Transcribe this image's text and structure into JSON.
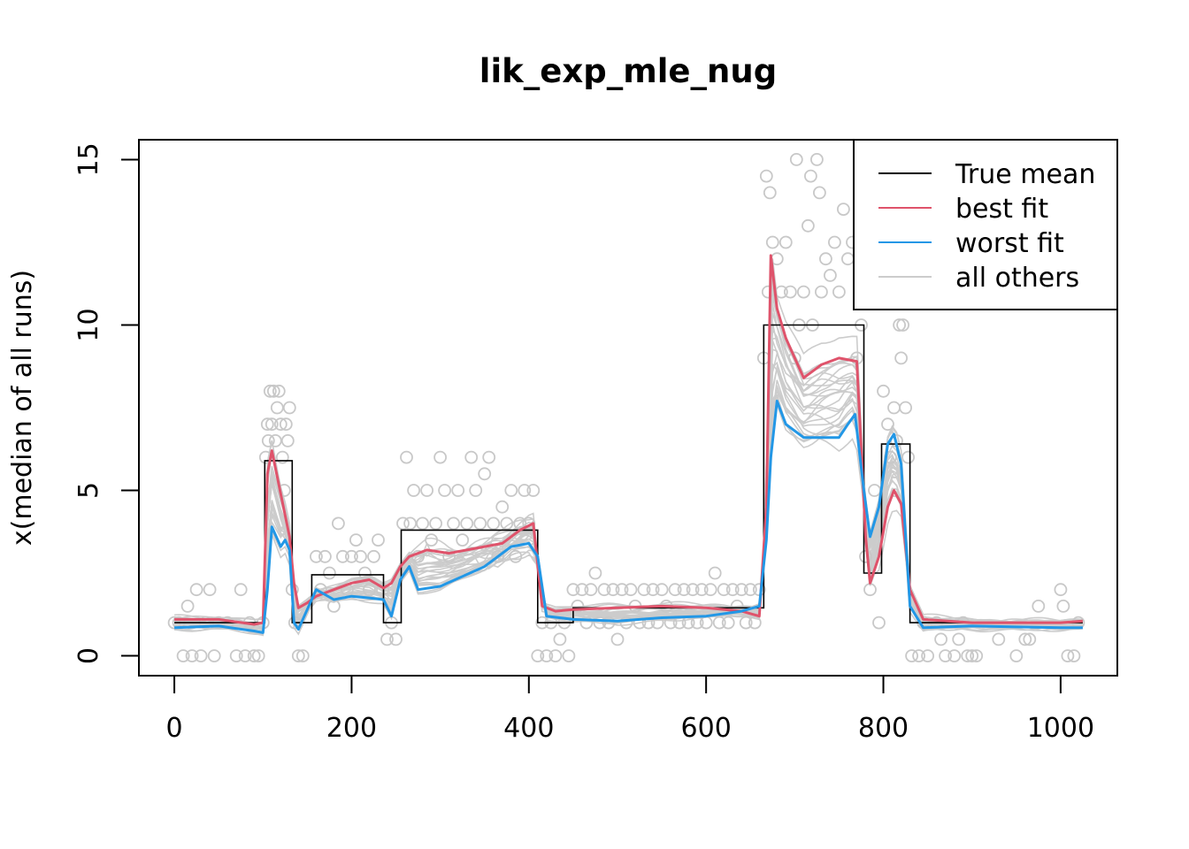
{
  "chart_data": {
    "type": "line",
    "title": "lik_exp_mle_nug",
    "xlabel": "",
    "ylabel": "x(median of all runs)",
    "xlim": [
      -40,
      1064
    ],
    "ylim": [
      -0.6,
      15.6
    ],
    "x_ticks": [
      0,
      200,
      400,
      600,
      800,
      1000
    ],
    "y_ticks": [
      0,
      5,
      10,
      15
    ],
    "x_tick_labels": [
      "0",
      "200",
      "400",
      "600",
      "800",
      "1000"
    ],
    "y_tick_labels": [
      "0",
      "5",
      "10",
      "15"
    ],
    "grid": false,
    "legend_position": "top-right",
    "colors": {
      "true_mean": "#000000",
      "best_fit": "#DF536B",
      "worst_fit": "#2297E6",
      "all_others": "#CCCCCC",
      "points": "#C8C8C8"
    },
    "legend": [
      {
        "key": "true_mean",
        "label": "True mean"
      },
      {
        "key": "best_fit",
        "label": "best fit"
      },
      {
        "key": "worst_fit",
        "label": "worst fit"
      },
      {
        "key": "all_others",
        "label": "all others"
      }
    ],
    "true_mean": {
      "name": "True mean",
      "x": [
        0,
        102,
        102,
        133,
        133,
        155,
        155,
        236,
        236,
        256,
        256,
        410,
        410,
        450,
        450,
        665,
        665,
        778,
        778,
        798,
        798,
        830,
        830,
        1025
      ],
      "y": [
        1,
        1,
        5.9,
        5.9,
        1,
        1,
        2.45,
        2.45,
        1,
        1,
        3.8,
        3.8,
        1,
        1,
        1.45,
        1.45,
        10,
        10,
        2.5,
        2.5,
        6.4,
        6.4,
        1,
        1
      ]
    },
    "best_fit": {
      "name": "best fit",
      "x": [
        0,
        50,
        90,
        100,
        105,
        110,
        120,
        130,
        135,
        140,
        150,
        160,
        180,
        200,
        220,
        236,
        245,
        255,
        265,
        285,
        310,
        340,
        370,
        390,
        405,
        415,
        430,
        450,
        500,
        550,
        600,
        640,
        660,
        668,
        673,
        680,
        690,
        710,
        730,
        750,
        770,
        780,
        785,
        795,
        805,
        812,
        820,
        830,
        845,
        900,
        1000,
        1025
      ],
      "y": [
        1.1,
        1.1,
        0.95,
        1.0,
        5.5,
        6.2,
        4.9,
        3.6,
        2.2,
        1.45,
        1.6,
        1.8,
        2.0,
        2.2,
        2.3,
        2.05,
        2.2,
        2.7,
        3.0,
        3.2,
        3.1,
        3.25,
        3.4,
        3.8,
        4.0,
        1.5,
        1.35,
        1.4,
        1.45,
        1.5,
        1.45,
        1.35,
        1.2,
        4.5,
        12.1,
        10.5,
        9.6,
        8.4,
        8.8,
        9.0,
        8.9,
        3.6,
        2.2,
        3.0,
        4.5,
        5.0,
        4.6,
        2.0,
        1.1,
        1.0,
        1.0,
        1.05
      ]
    },
    "worst_fit": {
      "name": "worst fit",
      "x": [
        0,
        50,
        90,
        100,
        105,
        110,
        120,
        125,
        130,
        135,
        140,
        150,
        160,
        180,
        200,
        220,
        236,
        245,
        255,
        265,
        275,
        300,
        350,
        380,
        400,
        410,
        420,
        450,
        500,
        550,
        600,
        640,
        660,
        668,
        673,
        680,
        690,
        710,
        730,
        750,
        760,
        768,
        778,
        785,
        795,
        805,
        812,
        820,
        830,
        845,
        900,
        1000,
        1025
      ],
      "y": [
        0.85,
        0.9,
        0.75,
        0.7,
        2.0,
        3.9,
        3.3,
        3.5,
        3.2,
        1.0,
        0.8,
        1.4,
        2.0,
        1.7,
        1.8,
        1.75,
        1.7,
        1.2,
        2.3,
        2.7,
        2.0,
        2.1,
        2.7,
        3.3,
        3.4,
        3.0,
        1.2,
        1.1,
        1.05,
        1.15,
        1.2,
        1.35,
        1.5,
        3.5,
        6.0,
        7.7,
        7.0,
        6.6,
        6.6,
        6.6,
        7.0,
        7.3,
        5.0,
        3.6,
        4.5,
        6.4,
        6.7,
        5.8,
        1.5,
        0.85,
        0.9,
        0.85,
        0.85
      ]
    },
    "points_note": "",
    "points": [
      [
        0,
        1
      ],
      [
        5,
        1
      ],
      [
        10,
        0
      ],
      [
        15,
        1.5
      ],
      [
        20,
        0
      ],
      [
        25,
        2
      ],
      [
        30,
        0
      ],
      [
        35,
        1
      ],
      [
        40,
        2
      ],
      [
        45,
        0
      ],
      [
        50,
        1
      ],
      [
        60,
        1
      ],
      [
        70,
        0
      ],
      [
        75,
        2
      ],
      [
        80,
        0
      ],
      [
        85,
        1
      ],
      [
        90,
        0
      ],
      [
        95,
        0
      ],
      [
        100,
        1
      ],
      [
        103,
        6
      ],
      [
        105,
        7
      ],
      [
        106,
        6.5
      ],
      [
        108,
        8
      ],
      [
        110,
        7
      ],
      [
        112,
        8
      ],
      [
        114,
        6.5
      ],
      [
        116,
        7.5
      ],
      [
        118,
        8
      ],
      [
        120,
        7
      ],
      [
        122,
        6
      ],
      [
        124,
        5
      ],
      [
        126,
        7
      ],
      [
        128,
        6.5
      ],
      [
        130,
        7.5
      ],
      [
        133,
        2
      ],
      [
        136,
        1
      ],
      [
        140,
        0
      ],
      [
        145,
        0
      ],
      [
        160,
        3
      ],
      [
        165,
        2
      ],
      [
        170,
        3
      ],
      [
        175,
        2.5
      ],
      [
        180,
        1.5
      ],
      [
        185,
        4
      ],
      [
        190,
        3
      ],
      [
        195,
        2
      ],
      [
        200,
        3
      ],
      [
        205,
        3.5
      ],
      [
        210,
        3
      ],
      [
        215,
        2.5
      ],
      [
        220,
        2
      ],
      [
        225,
        3
      ],
      [
        230,
        3.5
      ],
      [
        235,
        2
      ],
      [
        240,
        0.5
      ],
      [
        245,
        1
      ],
      [
        250,
        0.5
      ],
      [
        258,
        4
      ],
      [
        262,
        6
      ],
      [
        266,
        4
      ],
      [
        270,
        5
      ],
      [
        275,
        3
      ],
      [
        280,
        4
      ],
      [
        285,
        5
      ],
      [
        290,
        3.5
      ],
      [
        295,
        4
      ],
      [
        300,
        6
      ],
      [
        305,
        5
      ],
      [
        310,
        3
      ],
      [
        315,
        4
      ],
      [
        320,
        5
      ],
      [
        325,
        3.5
      ],
      [
        330,
        4
      ],
      [
        335,
        6
      ],
      [
        340,
        5
      ],
      [
        345,
        4
      ],
      [
        350,
        5.5
      ],
      [
        355,
        6
      ],
      [
        360,
        4
      ],
      [
        365,
        3
      ],
      [
        370,
        4.5
      ],
      [
        375,
        4
      ],
      [
        380,
        5
      ],
      [
        385,
        3
      ],
      [
        390,
        4
      ],
      [
        395,
        5
      ],
      [
        400,
        4
      ],
      [
        405,
        5
      ],
      [
        410,
        0
      ],
      [
        415,
        1
      ],
      [
        420,
        0
      ],
      [
        425,
        1
      ],
      [
        430,
        0
      ],
      [
        435,
        0.5
      ],
      [
        440,
        1
      ],
      [
        445,
        0
      ],
      [
        450,
        2
      ],
      [
        455,
        1.5
      ],
      [
        460,
        2
      ],
      [
        465,
        1
      ],
      [
        470,
        2
      ],
      [
        475,
        2.5
      ],
      [
        480,
        1
      ],
      [
        485,
        2
      ],
      [
        490,
        1
      ],
      [
        495,
        2
      ],
      [
        500,
        0.5
      ],
      [
        505,
        2
      ],
      [
        510,
        1
      ],
      [
        515,
        2
      ],
      [
        520,
        1.5
      ],
      [
        525,
        1
      ],
      [
        530,
        2
      ],
      [
        535,
        1
      ],
      [
        540,
        2
      ],
      [
        545,
        1
      ],
      [
        550,
        2
      ],
      [
        555,
        1.5
      ],
      [
        560,
        1
      ],
      [
        565,
        2
      ],
      [
        570,
        1
      ],
      [
        575,
        2
      ],
      [
        580,
        1
      ],
      [
        585,
        2
      ],
      [
        590,
        1
      ],
      [
        595,
        2
      ],
      [
        600,
        1
      ],
      [
        605,
        2
      ],
      [
        610,
        2.5
      ],
      [
        615,
        1
      ],
      [
        620,
        2
      ],
      [
        625,
        1
      ],
      [
        630,
        2
      ],
      [
        635,
        1.5
      ],
      [
        640,
        2
      ],
      [
        645,
        1
      ],
      [
        650,
        2
      ],
      [
        655,
        1
      ],
      [
        660,
        2
      ],
      [
        665,
        9
      ],
      [
        668,
        14.5
      ],
      [
        670,
        11
      ],
      [
        672,
        14
      ],
      [
        675,
        12.5
      ],
      [
        680,
        12
      ],
      [
        685,
        11
      ],
      [
        690,
        12.5
      ],
      [
        695,
        11
      ],
      [
        700,
        9
      ],
      [
        702,
        15
      ],
      [
        705,
        10
      ],
      [
        710,
        11
      ],
      [
        715,
        13
      ],
      [
        718,
        14.5
      ],
      [
        720,
        10
      ],
      [
        725,
        15
      ],
      [
        728,
        14
      ],
      [
        730,
        11
      ],
      [
        735,
        12
      ],
      [
        740,
        11.5
      ],
      [
        745,
        12.5
      ],
      [
        750,
        11
      ],
      [
        755,
        13.5
      ],
      [
        760,
        12
      ],
      [
        765,
        12.5
      ],
      [
        770,
        9
      ],
      [
        775,
        10
      ],
      [
        780,
        3
      ],
      [
        785,
        2
      ],
      [
        790,
        5
      ],
      [
        795,
        1
      ],
      [
        800,
        8
      ],
      [
        805,
        7
      ],
      [
        808,
        6
      ],
      [
        812,
        7.5
      ],
      [
        815,
        6.5
      ],
      [
        818,
        10
      ],
      [
        820,
        9
      ],
      [
        822,
        10
      ],
      [
        825,
        7.5
      ],
      [
        828,
        6
      ],
      [
        832,
        0
      ],
      [
        840,
        0
      ],
      [
        845,
        1
      ],
      [
        850,
        0
      ],
      [
        860,
        1
      ],
      [
        865,
        0.5
      ],
      [
        870,
        0
      ],
      [
        880,
        0
      ],
      [
        885,
        0.5
      ],
      [
        890,
        1
      ],
      [
        895,
        0
      ],
      [
        900,
        0
      ],
      [
        905,
        0
      ],
      [
        930,
        0.5
      ],
      [
        950,
        0
      ],
      [
        960,
        0.5
      ],
      [
        965,
        0.5
      ],
      [
        975,
        1.5
      ],
      [
        1000,
        2
      ],
      [
        1003,
        1.5
      ],
      [
        1008,
        0
      ],
      [
        1015,
        0
      ],
      [
        1020,
        1
      ]
    ],
    "other_runs_count_note": ""
  }
}
